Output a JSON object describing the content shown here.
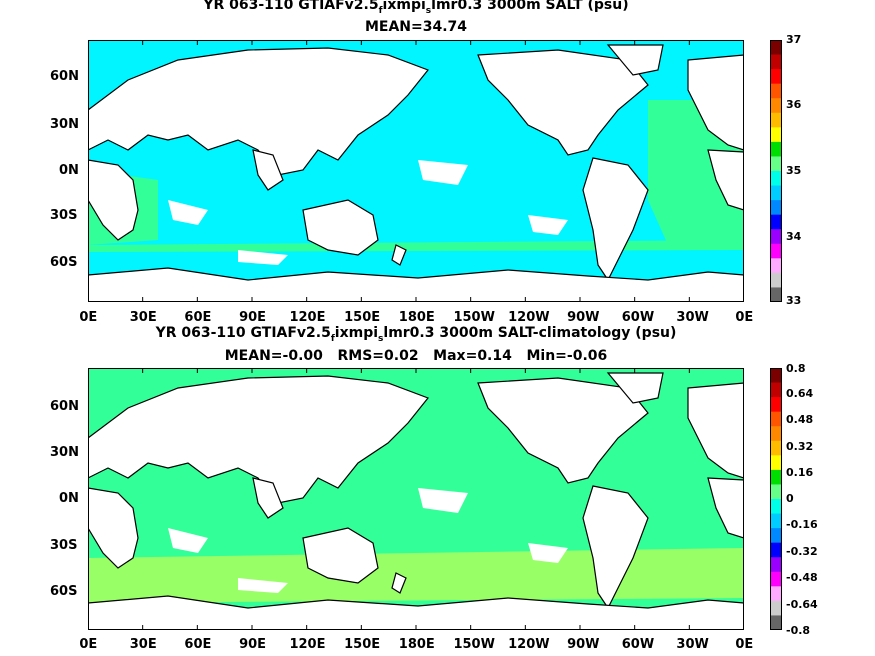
{
  "panels": [
    {
      "title_pre": "YR 063-110 GTIAFv2.5",
      "title_sub1": "f",
      "title_mid": "ixmpi",
      "title_sub2": "s",
      "title_post": "lmr0.3 3000m SALT (psu)",
      "stats": "MEAN=34.74",
      "colorbar_labels": [
        "37",
        "36",
        "35",
        "34",
        "33"
      ],
      "colorbar_colors": [
        "#7a0000",
        "#c00000",
        "#ff0000",
        "#ff5500",
        "#ff8800",
        "#ffbb00",
        "#ffff00",
        "#00dd00",
        "#66ff88",
        "#00ffe8",
        "#00ccff",
        "#0088ff",
        "#0000ff",
        "#9900ff",
        "#ff00ff",
        "#ffaaff",
        "#cccccc",
        "#666666"
      ],
      "ocean_color": "#00f5ff",
      "accent_color": "#33ff99"
    },
    {
      "title_pre": "YR 063-110 GTIAFv2.5",
      "title_sub1": "f",
      "title_mid": "ixmpi",
      "title_sub2": "s",
      "title_post": "lmr0.3 3000m SALT-climatology (psu)",
      "stats": "MEAN=-0.00   RMS=0.02   Max=0.14   Min=-0.06",
      "colorbar_labels": [
        "0.8",
        "0.64",
        "0.48",
        "0.32",
        "0.16",
        "0",
        "-0.16",
        "-0.32",
        "-0.48",
        "-0.64",
        "-0.8"
      ],
      "colorbar_colors": [
        "#7a0000",
        "#c00000",
        "#ff0000",
        "#ff5500",
        "#ff8800",
        "#ffbb00",
        "#ffff00",
        "#00dd00",
        "#66ff88",
        "#00ffe8",
        "#00ccff",
        "#0088ff",
        "#0000ff",
        "#9900ff",
        "#ff00ff",
        "#ffaaff",
        "#cccccc",
        "#666666"
      ],
      "ocean_color": "#33ff99",
      "accent_color": "#99ff66"
    }
  ],
  "lat_labels": [
    "60N",
    "30N",
    "0N",
    "30S",
    "60S"
  ],
  "lon_labels": [
    "0E",
    "30E",
    "60E",
    "90E",
    "120E",
    "150E",
    "180E",
    "150W",
    "120W",
    "90W",
    "60W",
    "30W",
    "0E"
  ]
}
